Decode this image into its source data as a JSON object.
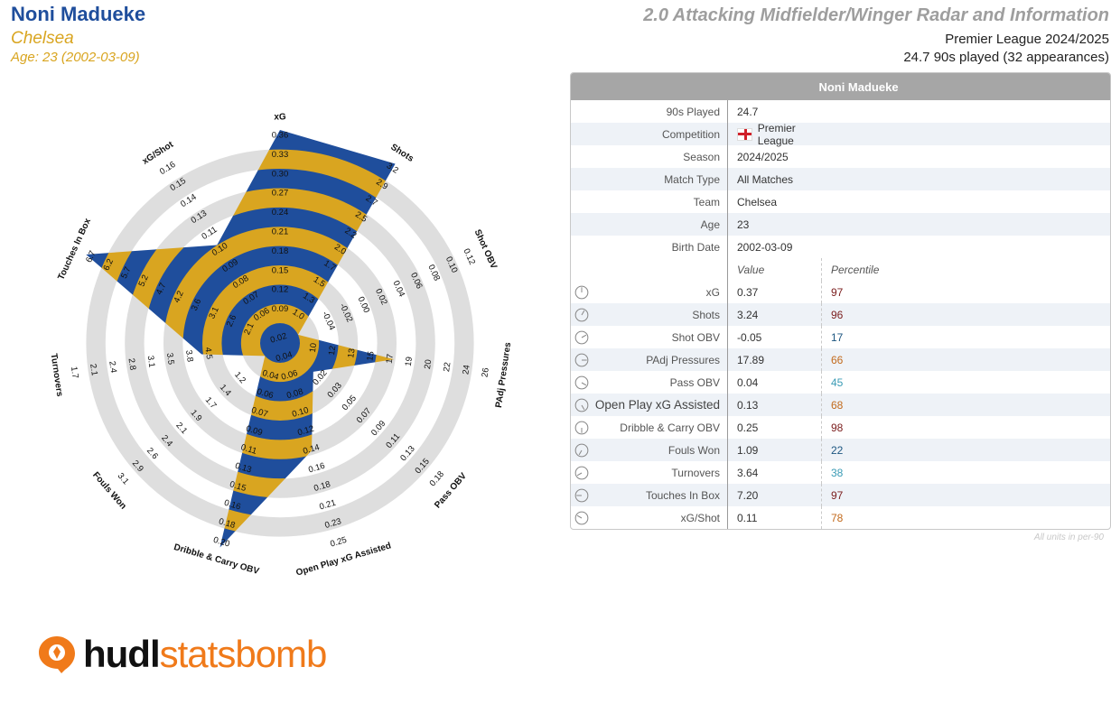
{
  "header": {
    "player_name": "Noni Madueke",
    "team": "Chelsea",
    "age_line": "Age: 23 (2002-03-09)",
    "report_title": "2.0 Attacking Midfielder/Winger Radar and Information",
    "competition_line": "Premier League 2024/2025",
    "played_line": "24.7 90s played (32 appearances)"
  },
  "colors": {
    "player_blue": "#1f4e9c",
    "team_gold": "#d9a520",
    "ring_grey": "#dedede",
    "pct_dark_red": "#7a1c1c",
    "pct_orange": "#c26a1c",
    "pct_teal": "#3a9bb5",
    "pct_navy": "#1c5680",
    "logo_orange": "#f07a1a"
  },
  "chart_data": {
    "type": "radar",
    "metrics": [
      {
        "label": "xG",
        "ticks": [
          "0.09",
          "0.12",
          "0.15",
          "0.18",
          "0.21",
          "0.24",
          "0.27",
          "0.30",
          "0.33",
          "0.36"
        ],
        "value": 0.37
      },
      {
        "label": "Shots",
        "ticks": [
          "1.0",
          "1.3",
          "1.5",
          "1.7",
          "2.0",
          "2.2",
          "2.5",
          "2.7",
          "2.9",
          "3.2"
        ],
        "value": 3.24
      },
      {
        "label": "Shot OBV",
        "ticks": [
          "-0.04",
          "-0.02",
          "0.00",
          "0.02",
          "0.04",
          "0.06",
          "0.08",
          "0.10",
          "0.12"
        ],
        "value": -0.05
      },
      {
        "label": "PAdj Pressures",
        "ticks": [
          "10",
          "12",
          "13",
          "15",
          "17",
          "19",
          "20",
          "22",
          "24",
          "26"
        ],
        "value": 17.89
      },
      {
        "label": "Pass OBV",
        "ticks": [
          "0.02",
          "0.03",
          "0.05",
          "0.07",
          "0.09",
          "0.11",
          "0.13",
          "0.15",
          "0.18"
        ],
        "value": 0.04
      },
      {
        "label": "Open Play xG Assisted",
        "ticks": [
          "0.02",
          "0.04",
          "0.06",
          "0.08",
          "0.10",
          "0.12",
          "0.14",
          "0.16",
          "0.18",
          "0.21",
          "0.23",
          "0.25"
        ],
        "value": 0.13
      },
      {
        "label": "Dribble & Carry OBV",
        "ticks": [
          "0.04",
          "0.06",
          "0.07",
          "0.09",
          "0.11",
          "0.13",
          "0.15",
          "0.16",
          "0.18",
          "0.20"
        ],
        "value": 0.25
      },
      {
        "label": "Fouls Won",
        "ticks": [
          "1.2",
          "1.4",
          "1.7",
          "1.9",
          "2.1",
          "2.4",
          "2.6",
          "2.9",
          "3.1"
        ],
        "value": 1.09
      },
      {
        "label": "Turnovers",
        "ticks": [
          "4.5",
          "3.8",
          "3.5",
          "3.1",
          "2.8",
          "2.4",
          "2.1",
          "1.7"
        ],
        "value": 3.64
      },
      {
        "label": "Touches In Box",
        "ticks": [
          "2.1",
          "2.6",
          "3.1",
          "3.6",
          "4.2",
          "4.7",
          "5.2",
          "5.7",
          "6.2",
          "6.7"
        ],
        "value": 7.2
      },
      {
        "label": "xG/Shot",
        "ticks": [
          "0.06",
          "0.07",
          "0.08",
          "0.09",
          "0.10",
          "0.11",
          "0.13",
          "0.14",
          "0.15",
          "0.16"
        ],
        "value": 0.11
      }
    ],
    "stripe_colors": [
      "#d9a520",
      "#1f4e9c"
    ],
    "ring_color": "#dedede"
  },
  "table": {
    "title": "Noni Madueke",
    "info_rows": [
      {
        "label": "90s Played",
        "value": "24.7"
      },
      {
        "label": "Competition",
        "value": "Premier League",
        "flag": "england-flag"
      },
      {
        "label": "Season",
        "value": "2024/2025"
      },
      {
        "label": "Match Type",
        "value": "All Matches"
      },
      {
        "label": "Team",
        "value": "Chelsea"
      },
      {
        "label": "Age",
        "value": "23"
      },
      {
        "label": "Birth Date",
        "value": "2002-03-09"
      }
    ],
    "col_value": "Value",
    "col_percentile": "Percentile",
    "metric_rows": [
      {
        "label": "xG",
        "value": "0.37",
        "pct": "97",
        "pct_color": "#7a1c1c",
        "icon": "dial-icon"
      },
      {
        "label": "Shots",
        "value": "3.24",
        "pct": "96",
        "pct_color": "#7a1c1c",
        "icon": "dial-icon"
      },
      {
        "label": "Shot OBV",
        "value": "-0.05",
        "pct": "17",
        "pct_color": "#1c5680",
        "icon": "dial-icon"
      },
      {
        "label": "PAdj Pressures",
        "value": "17.89",
        "pct": "66",
        "pct_color": "#c26a1c",
        "icon": "dial-icon"
      },
      {
        "label": "Pass OBV",
        "value": "0.04",
        "pct": "45",
        "pct_color": "#3a9bb5",
        "icon": "dial-icon"
      },
      {
        "label": "Open Play xG Assisted",
        "value": "0.13",
        "pct": "68",
        "pct_color": "#c26a1c",
        "icon": "dial-icon",
        "big": true
      },
      {
        "label": "Dribble & Carry OBV",
        "value": "0.25",
        "pct": "98",
        "pct_color": "#7a1c1c",
        "icon": "dial-icon"
      },
      {
        "label": "Fouls Won",
        "value": "1.09",
        "pct": "22",
        "pct_color": "#1c5680",
        "icon": "dial-icon"
      },
      {
        "label": "Turnovers",
        "value": "3.64",
        "pct": "38",
        "pct_color": "#3a9bb5",
        "icon": "dial-icon"
      },
      {
        "label": "Touches In Box",
        "value": "7.20",
        "pct": "97",
        "pct_color": "#7a1c1c",
        "icon": "dial-icon"
      },
      {
        "label": "xG/Shot",
        "value": "0.11",
        "pct": "78",
        "pct_color": "#c26a1c",
        "icon": "dial-icon"
      }
    ],
    "footnote": "All units in per-90"
  },
  "logo": {
    "word_a": "hudl",
    "word_b": "statsbomb"
  }
}
